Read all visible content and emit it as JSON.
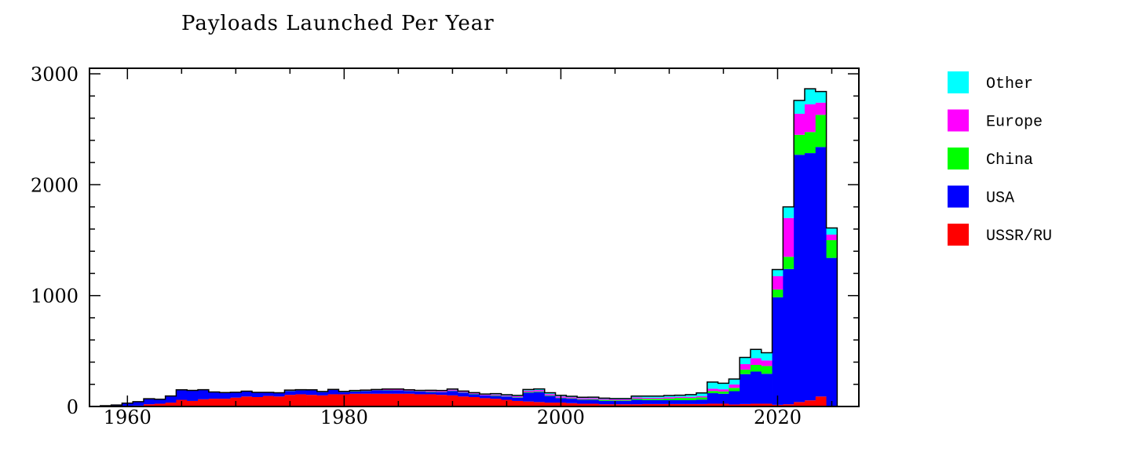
{
  "chart_data": {
    "type": "bar",
    "stacked": true,
    "title": "Payloads Launched Per Year",
    "xlabel": "",
    "ylabel": "",
    "xlim": [
      1956.5,
      2027.5
    ],
    "ylim": [
      0,
      3050
    ],
    "x_ticks": [
      1960,
      1980,
      2000,
      2020
    ],
    "y_ticks": [
      0,
      1000,
      2000,
      3000
    ],
    "grid": false,
    "legend_position": "right",
    "years": [
      1957,
      1958,
      1959,
      1960,
      1961,
      1962,
      1963,
      1964,
      1965,
      1966,
      1967,
      1968,
      1969,
      1970,
      1971,
      1972,
      1973,
      1974,
      1975,
      1976,
      1977,
      1978,
      1979,
      1980,
      1981,
      1982,
      1983,
      1984,
      1985,
      1986,
      1987,
      1988,
      1989,
      1990,
      1991,
      1992,
      1993,
      1994,
      1995,
      1996,
      1997,
      1998,
      1999,
      2000,
      2001,
      2002,
      2003,
      2004,
      2005,
      2006,
      2007,
      2008,
      2009,
      2010,
      2011,
      2012,
      2013,
      2014,
      2015,
      2016,
      2017,
      2018,
      2019,
      2020,
      2021,
      2022,
      2023,
      2024,
      2025
    ],
    "series": [
      {
        "name": "USSR/RU",
        "color": "#ff0000",
        "values": [
          2,
          1,
          3,
          5,
          8,
          20,
          25,
          35,
          60,
          50,
          65,
          70,
          70,
          80,
          90,
          85,
          95,
          90,
          105,
          110,
          105,
          100,
          110,
          110,
          115,
          115,
          115,
          115,
          115,
          115,
          110,
          110,
          105,
          100,
          90,
          85,
          75,
          70,
          60,
          50,
          45,
          40,
          35,
          35,
          30,
          25,
          25,
          20,
          20,
          20,
          20,
          22,
          22,
          22,
          22,
          22,
          22,
          25,
          25,
          18,
          22,
          25,
          25,
          15,
          20,
          40,
          55,
          90,
          0
        ]
      },
      {
        "name": "USA",
        "color": "#0000ff",
        "values": [
          0,
          6,
          10,
          25,
          35,
          50,
          40,
          60,
          90,
          95,
          85,
          60,
          55,
          45,
          45,
          40,
          30,
          30,
          35,
          35,
          40,
          30,
          40,
          20,
          20,
          25,
          30,
          30,
          30,
          25,
          25,
          20,
          25,
          40,
          35,
          25,
          25,
          25,
          30,
          30,
          80,
          90,
          60,
          40,
          40,
          35,
          35,
          30,
          30,
          30,
          40,
          35,
          35,
          35,
          35,
          35,
          40,
          95,
          90,
          120,
          270,
          290,
          270,
          970,
          1220,
          2230,
          2230,
          2250,
          1340
        ]
      },
      {
        "name": "China",
        "color": "#00ff00",
        "values": [
          0,
          0,
          0,
          0,
          0,
          0,
          0,
          0,
          0,
          0,
          0,
          0,
          0,
          1,
          1,
          0,
          0,
          2,
          3,
          3,
          1,
          1,
          1,
          1,
          3,
          2,
          2,
          3,
          2,
          2,
          2,
          4,
          2,
          3,
          2,
          3,
          1,
          5,
          2,
          4,
          6,
          6,
          5,
          4,
          4,
          5,
          6,
          9,
          6,
          6,
          10,
          12,
          12,
          15,
          20,
          20,
          20,
          20,
          20,
          30,
          40,
          60,
          70,
          70,
          110,
          180,
          190,
          290,
          160
        ]
      },
      {
        "name": "Europe",
        "color": "#ff00ff",
        "values": [
          0,
          0,
          0,
          0,
          0,
          0,
          0,
          0,
          0,
          0,
          1,
          1,
          1,
          1,
          1,
          1,
          1,
          1,
          3,
          1,
          2,
          2,
          1,
          3,
          3,
          3,
          3,
          5,
          6,
          4,
          4,
          8,
          8,
          8,
          6,
          6,
          5,
          8,
          6,
          8,
          12,
          12,
          12,
          12,
          10,
          10,
          10,
          8,
          8,
          8,
          12,
          10,
          10,
          12,
          10,
          10,
          10,
          20,
          20,
          30,
          50,
          60,
          50,
          120,
          350,
          190,
          250,
          110,
          50
        ]
      },
      {
        "name": "Other",
        "color": "#00ffff",
        "values": [
          0,
          0,
          0,
          0,
          0,
          0,
          0,
          0,
          0,
          0,
          0,
          0,
          0,
          1,
          1,
          1,
          1,
          1,
          2,
          2,
          2,
          2,
          2,
          2,
          3,
          3,
          3,
          4,
          4,
          4,
          4,
          4,
          4,
          6,
          6,
          6,
          6,
          8,
          8,
          8,
          10,
          10,
          12,
          10,
          8,
          8,
          8,
          8,
          8,
          8,
          12,
          15,
          15,
          15,
          15,
          20,
          30,
          60,
          55,
          50,
          60,
          80,
          70,
          60,
          100,
          120,
          140,
          100,
          60
        ]
      }
    ]
  }
}
